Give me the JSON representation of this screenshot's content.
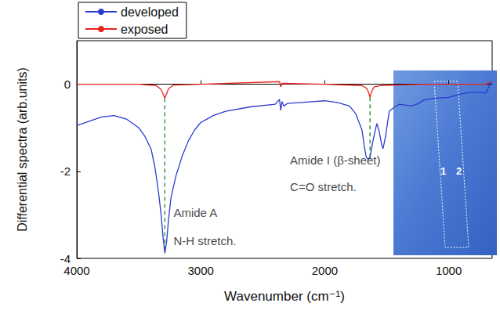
{
  "chart_data": {
    "type": "line",
    "x_label": "Wavenumber (cm⁻¹)",
    "y_label": "Differential spectra (arb.units)",
    "xlim": [
      4000,
      650
    ],
    "xticks": [
      4000,
      3000,
      2000,
      1000
    ],
    "ylim": [
      -4,
      1
    ],
    "yticks": [
      -4,
      -2,
      0
    ],
    "grid": false,
    "legend": "upper left",
    "series": [
      {
        "name": "developed",
        "color": "#2b3bd0",
        "x": [
          4000,
          3900,
          3800,
          3700,
          3600,
          3500,
          3450,
          3400,
          3370,
          3340,
          3320,
          3305,
          3290,
          3275,
          3260,
          3240,
          3200,
          3150,
          3100,
          3050,
          3000,
          2950,
          2900,
          2800,
          2600,
          2400,
          2365,
          2355,
          2345,
          2330,
          2300,
          2100,
          2000,
          1900,
          1800,
          1750,
          1700,
          1680,
          1665,
          1650,
          1635,
          1615,
          1600,
          1580,
          1560,
          1540,
          1530,
          1510,
          1480,
          1450,
          1400,
          1300,
          1250,
          1200,
          1100,
          1000,
          900,
          800,
          700,
          660
        ],
        "values": [
          -0.95,
          -0.85,
          -0.75,
          -0.72,
          -0.8,
          -1.0,
          -1.2,
          -1.5,
          -1.9,
          -2.5,
          -3.0,
          -3.5,
          -3.88,
          -3.6,
          -3.1,
          -2.6,
          -2.1,
          -1.65,
          -1.3,
          -1.05,
          -0.88,
          -0.8,
          -0.72,
          -0.62,
          -0.52,
          -0.46,
          -0.35,
          -0.6,
          -0.4,
          -0.5,
          -0.44,
          -0.4,
          -0.38,
          -0.42,
          -0.5,
          -0.68,
          -1.05,
          -1.45,
          -1.68,
          -1.72,
          -1.68,
          -1.35,
          -1.15,
          -0.9,
          -1.1,
          -1.4,
          -1.48,
          -1.2,
          -0.62,
          -0.55,
          -0.46,
          -0.5,
          -0.45,
          -0.36,
          -0.32,
          -0.3,
          -0.22,
          -0.18,
          -0.2,
          0.05
        ]
      },
      {
        "name": "exposed",
        "color": "#e8231c",
        "x": [
          4000,
          3500,
          3360,
          3320,
          3300,
          3290,
          3280,
          3260,
          3220,
          3000,
          2365,
          2355,
          2345,
          2000,
          1700,
          1660,
          1645,
          1635,
          1620,
          1600,
          1550,
          1200,
          700,
          660
        ],
        "values": [
          0,
          0,
          -0.03,
          -0.12,
          -0.25,
          -0.32,
          -0.25,
          -0.1,
          -0.02,
          0,
          0.06,
          -0.06,
          0.02,
          0,
          -0.03,
          -0.1,
          -0.2,
          -0.3,
          -0.15,
          -0.06,
          -0.03,
          0,
          0,
          0.06
        ]
      }
    ],
    "guide_lines": [
      {
        "x": 3290,
        "y": [
          -0.32,
          -3.88
        ],
        "color": "#2e8b2e",
        "line_style": "dashed"
      },
      {
        "x": 1635,
        "y": [
          -0.3,
          -1.68
        ],
        "color": "#2e8b2e",
        "line_style": "dashed"
      }
    ],
    "annotations": [
      {
        "text": "Amide A",
        "x": 3220,
        "y": -2.95
      },
      {
        "text": "N-H stretch.",
        "x": 3220,
        "y": -3.6
      },
      {
        "text": "Amide I (β-sheet)",
        "x": 2280,
        "y": -1.75
      },
      {
        "text": "C=O stretch.",
        "x": 2280,
        "y": -2.35
      }
    ],
    "inset": {
      "labels": [
        "1",
        "2"
      ]
    }
  }
}
